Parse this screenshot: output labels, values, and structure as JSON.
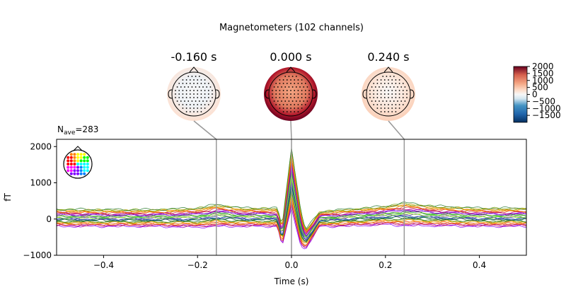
{
  "title": "Magnetometers (102 channels)",
  "nave_label": "N",
  "nave_sub": "ave",
  "nave_value": "=283",
  "chart_data": {
    "type": "line",
    "xlabel": "Time (s)",
    "ylabel": "fT",
    "xlim": [
      -0.5,
      0.5
    ],
    "ylim": [
      -1000,
      2200
    ],
    "xticks": [
      -0.4,
      -0.2,
      0.0,
      0.2,
      0.4
    ],
    "xtick_labels": [
      "−0.4",
      "−0.2",
      "0.0",
      "0.2",
      "0.4"
    ],
    "yticks": [
      -1000,
      0,
      1000,
      2000
    ],
    "ytick_labels": [
      "−1000",
      "0",
      "1000",
      "2000"
    ],
    "n_channels": 102,
    "envelope": {
      "t": [
        -0.5,
        -0.4,
        -0.3,
        -0.2,
        -0.16,
        -0.1,
        -0.03,
        -0.02,
        0.0,
        0.02,
        0.03,
        0.06,
        0.1,
        0.2,
        0.24,
        0.3,
        0.4,
        0.5
      ],
      "max": [
        270,
        260,
        260,
        300,
        400,
        300,
        300,
        -200,
        2000,
        200,
        -300,
        200,
        250,
        350,
        450,
        360,
        300,
        300
      ],
      "min": [
        -200,
        -200,
        -200,
        -220,
        -200,
        -200,
        -200,
        -750,
        300,
        -750,
        -820,
        -200,
        -200,
        -150,
        -180,
        -180,
        -200,
        -200
      ]
    },
    "topomaps": [
      {
        "time": -0.16,
        "label": "-0.160 s"
      },
      {
        "time": 0.0,
        "label": "0.000 s"
      },
      {
        "time": 0.24,
        "label": "0.240 s"
      }
    ],
    "colorbar": {
      "range": [
        -2000,
        2000
      ],
      "ticks": [
        -1500,
        -1000,
        -500,
        0,
        500,
        1000,
        1500,
        2000
      ],
      "tick_labels": [
        "−1500",
        "−1000",
        "−500",
        "0",
        "500",
        "1000",
        "1500",
        "2000"
      ],
      "colormap": "RdBu_r"
    },
    "grid": false,
    "legend": "sensor-position head inset, top-left"
  }
}
